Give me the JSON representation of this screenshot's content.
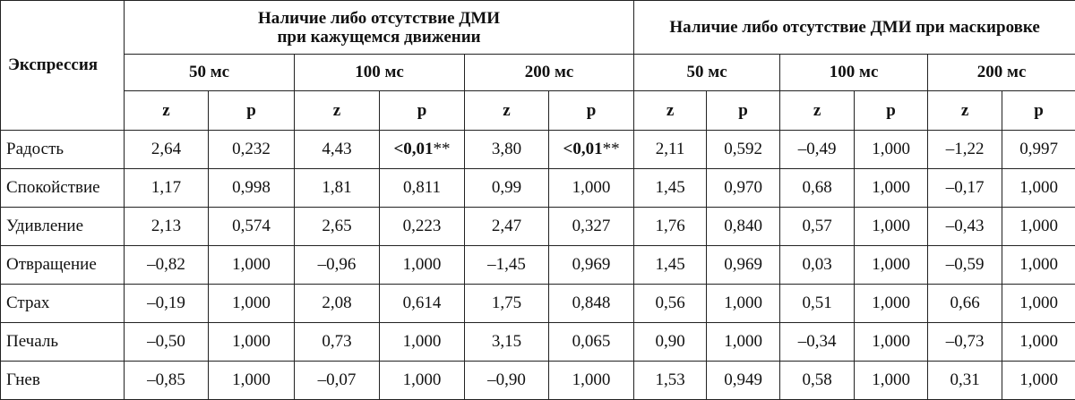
{
  "table": {
    "expression_header": "Экспрессия",
    "groups": [
      {
        "lines": [
          "Наличие либо отсутствие ДМИ",
          "при кажущемся движении"
        ],
        "durations": [
          "50 мс",
          "100 мс",
          "200 мс"
        ]
      },
      {
        "lines": [
          "Наличие либо отсутствие ДМИ при маскировке"
        ],
        "durations": [
          "50 мс",
          "100 мс",
          "200 мс"
        ]
      }
    ],
    "sub_headers": [
      "z",
      "p"
    ],
    "rows": [
      {
        "name": "Радость",
        "cells": [
          "2,64",
          "0,232",
          "4,43",
          {
            "bold": "<0,01",
            "mark": "**"
          },
          "3,80",
          {
            "bold": "<0,01",
            "mark": "**"
          },
          "2,11",
          "0,592",
          "–0,49",
          "1,000",
          "–1,22",
          "0,997"
        ]
      },
      {
        "name": "Спокойствие",
        "cells": [
          "1,17",
          "0,998",
          "1,81",
          "0,811",
          "0,99",
          "1,000",
          "1,45",
          "0,970",
          "0,68",
          "1,000",
          "–0,17",
          "1,000"
        ]
      },
      {
        "name": "Удивление",
        "cells": [
          "2,13",
          "0,574",
          "2,65",
          "0,223",
          "2,47",
          "0,327",
          "1,76",
          "0,840",
          "0,57",
          "1,000",
          "–0,43",
          "1,000"
        ]
      },
      {
        "name": "Отвращение",
        "cells": [
          "–0,82",
          "1,000",
          "–0,96",
          "1,000",
          "–1,45",
          "0,969",
          "1,45",
          "0,969",
          "0,03",
          "1,000",
          "–0,59",
          "1,000"
        ]
      },
      {
        "name": "Страх",
        "cells": [
          "–0,19",
          "1,000",
          "2,08",
          "0,614",
          "1,75",
          "0,848",
          "0,56",
          "1,000",
          "0,51",
          "1,000",
          "0,66",
          "1,000"
        ]
      },
      {
        "name": "Печаль",
        "cells": [
          "–0,50",
          "1,000",
          "0,73",
          "1,000",
          "3,15",
          "0,065",
          "0,90",
          "1,000",
          "–0,34",
          "1,000",
          "–0,73",
          "1,000"
        ]
      },
      {
        "name": "Гнев",
        "cells": [
          "–0,85",
          "1,000",
          "–0,07",
          "1,000",
          "–0,90",
          "1,000",
          "1,53",
          "0,949",
          "0,58",
          "1,000",
          "0,31",
          "1,000"
        ]
      }
    ]
  }
}
